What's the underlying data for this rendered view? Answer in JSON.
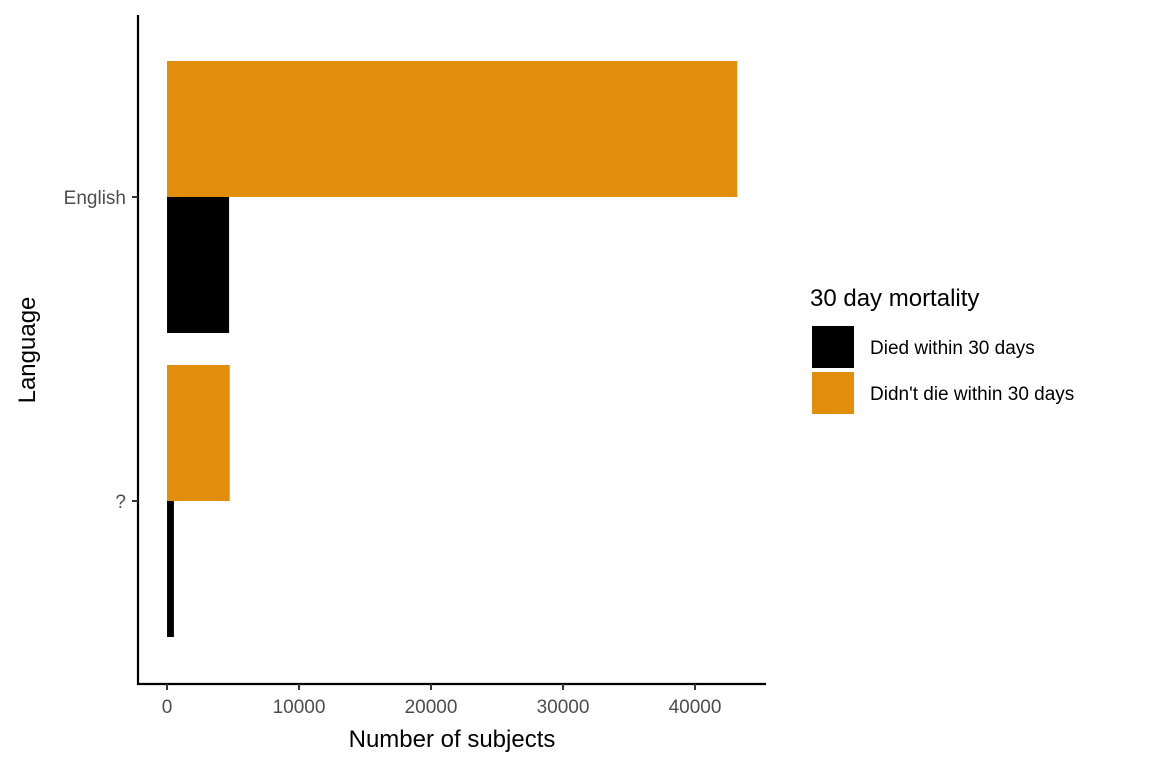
{
  "chart_data": {
    "type": "bar",
    "orientation": "horizontal",
    "categories": [
      "English",
      "?"
    ],
    "series": [
      {
        "name": "Died within 30 days",
        "color": "#000000",
        "values": [
          4700,
          520
        ]
      },
      {
        "name": "Didn't die within 30 days",
        "color": "#E08E0B",
        "values": [
          43200,
          4750
        ]
      }
    ],
    "xlabel": "Number of subjects",
    "ylabel": "Language",
    "xticks": [
      0,
      10000,
      20000,
      30000,
      40000
    ],
    "xtick_labels": [
      "0",
      "10000",
      "20000",
      "30000",
      "40000"
    ],
    "xlim": [
      -2200,
      45300
    ],
    "legend": {
      "title": "30 day mortality",
      "position": "right"
    },
    "grid": false
  }
}
